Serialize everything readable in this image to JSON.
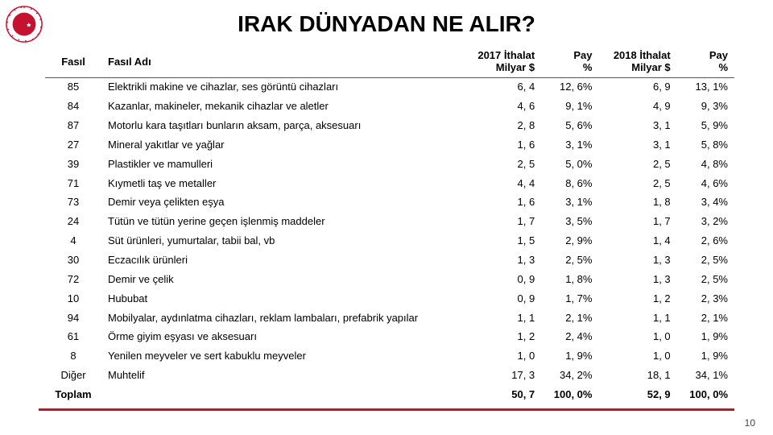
{
  "logo": {
    "ring_color": "#c4122f",
    "inner_color": "#c4122f",
    "star_color": "#ffffff",
    "label": "turkish-trade-ministry-logo"
  },
  "title": "IRAK DÜNYADAN NE ALIR?",
  "page_number": "10",
  "divider_color": "#c4122f",
  "table": {
    "columns": {
      "fasil": "Fasıl",
      "fasil_adi": "Fasıl Adı",
      "ithalat_2017_line1": "2017 İthalat",
      "ithalat_2017_line2": "Milyar $",
      "pay17_line1": "Pay",
      "pay17_line2": "%",
      "ithalat_2018_line1": "2018 İthalat",
      "ithalat_2018_line2": "Milyar $",
      "pay18_line1": "Pay",
      "pay18_line2": "%"
    },
    "rows": [
      {
        "fasil": "85",
        "name": "Elektrikli makine ve cihazlar, ses görüntü cihazları",
        "v17": "6, 4",
        "p17": "12, 6%",
        "v18": "6, 9",
        "p18": "13, 1%"
      },
      {
        "fasil": "84",
        "name": "Kazanlar, makineler, mekanik cihazlar ve aletler",
        "v17": "4, 6",
        "p17": "9, 1%",
        "v18": "4, 9",
        "p18": "9, 3%"
      },
      {
        "fasil": "87",
        "name": "Motorlu kara taşıtları bunların aksam, parça, aksesuarı",
        "v17": "2, 8",
        "p17": "5, 6%",
        "v18": "3, 1",
        "p18": "5, 9%"
      },
      {
        "fasil": "27",
        "name": "Mineral yakıtlar ve yağlar",
        "v17": "1, 6",
        "p17": "3, 1%",
        "v18": "3, 1",
        "p18": "5, 8%"
      },
      {
        "fasil": "39",
        "name": "Plastikler ve mamulleri",
        "v17": "2, 5",
        "p17": "5, 0%",
        "v18": "2, 5",
        "p18": "4, 8%"
      },
      {
        "fasil": "71",
        "name": "Kıymetli taş ve metaller",
        "v17": "4, 4",
        "p17": "8, 6%",
        "v18": "2, 5",
        "p18": "4, 6%"
      },
      {
        "fasil": "73",
        "name": "Demir veya çelikten eşya",
        "v17": "1, 6",
        "p17": "3, 1%",
        "v18": "1, 8",
        "p18": "3, 4%"
      },
      {
        "fasil": "24",
        "name": "Tütün ve tütün yerine geçen işlenmiş maddeler",
        "v17": "1, 7",
        "p17": "3, 5%",
        "v18": "1, 7",
        "p18": "3, 2%"
      },
      {
        "fasil": "4",
        "name": "Süt ürünleri, yumurtalar, tabii bal, vb",
        "v17": "1, 5",
        "p17": "2, 9%",
        "v18": "1, 4",
        "p18": "2, 6%"
      },
      {
        "fasil": "30",
        "name": "Eczacılık ürünleri",
        "v17": "1, 3",
        "p17": "2, 5%",
        "v18": "1, 3",
        "p18": "2, 5%"
      },
      {
        "fasil": "72",
        "name": "Demir ve çelik",
        "v17": "0, 9",
        "p17": "1, 8%",
        "v18": "1, 3",
        "p18": "2, 5%"
      },
      {
        "fasil": "10",
        "name": "Hububat",
        "v17": "0, 9",
        "p17": "1, 7%",
        "v18": "1, 2",
        "p18": "2, 3%"
      },
      {
        "fasil": "94",
        "name": "Mobilyalar, aydınlatma cihazları, reklam lambaları, prefabrik yapılar",
        "v17": "1, 1",
        "p17": "2, 1%",
        "v18": "1, 1",
        "p18": "2, 1%"
      },
      {
        "fasil": "61",
        "name": "Örme giyim eşyası ve aksesuarı",
        "v17": "1, 2",
        "p17": "2, 4%",
        "v18": "1, 0",
        "p18": "1, 9%"
      },
      {
        "fasil": "8",
        "name": "Yenilen meyveler ve sert kabuklu meyveler",
        "v17": "1, 0",
        "p17": "1, 9%",
        "v18": "1, 0",
        "p18": "1, 9%"
      },
      {
        "fasil": "Diğer",
        "name": "Muhtelif",
        "v17": "17, 3",
        "p17": "34, 2%",
        "v18": "18, 1",
        "p18": "34, 1%"
      }
    ],
    "total": {
      "fasil": "Toplam",
      "name": "",
      "v17": "50, 7",
      "p17": "100, 0%",
      "v18": "52, 9",
      "p18": "100, 0%"
    }
  }
}
